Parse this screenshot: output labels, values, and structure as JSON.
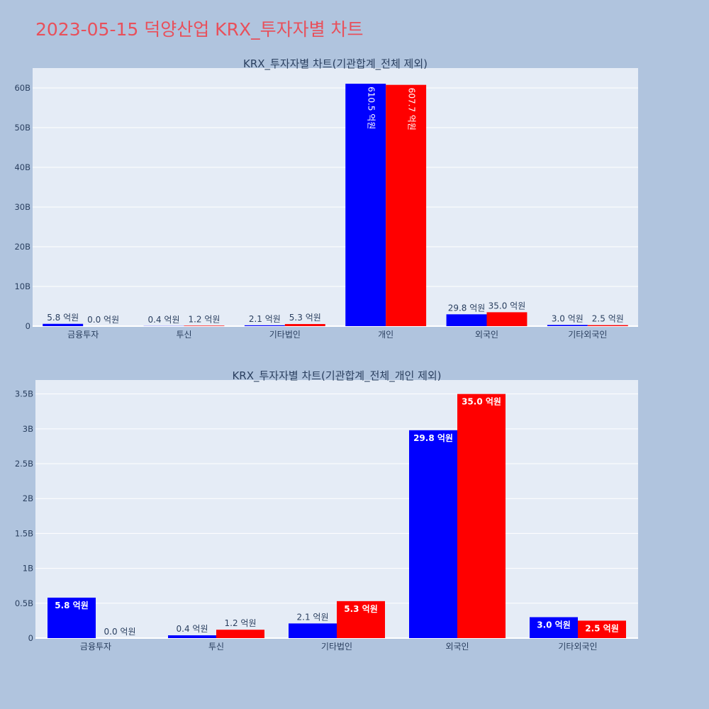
{
  "title": "2023-05-15 덕양산업 KRX_투자자별 차트",
  "colors": {
    "buy": "#0000ff",
    "sell": "#ff0000",
    "plot_bg": "#e5ecf6",
    "page_bg": "#b0c4de",
    "title": "#e8505b"
  },
  "chart_data": [
    {
      "type": "bar",
      "title": "KRX_투자자별 차트(기관합계_전체 제외)",
      "categories": [
        "금융투자",
        "투신",
        "기타법인",
        "개인",
        "외국인",
        "기타외국인"
      ],
      "series": [
        {
          "values": [
            0.58,
            0.04,
            0.21,
            61.05,
            2.98,
            0.3
          ],
          "labels": [
            "5.8 억원",
            "0.4 억원",
            "2.1 억원",
            "610.5 억원",
            "29.8 억원",
            "3.0 억원"
          ]
        },
        {
          "values": [
            0.0,
            0.12,
            0.53,
            60.77,
            3.5,
            0.25
          ],
          "labels": [
            "0.0 억원",
            "1.2 억원",
            "5.3 억원",
            "607.7 억원",
            "35.0 억원",
            "2.5 억원"
          ]
        }
      ],
      "yticks": [
        0,
        10,
        20,
        30,
        40,
        50,
        60
      ],
      "ytick_labels": [
        "0",
        "10B",
        "20B",
        "30B",
        "40B",
        "50B",
        "60B"
      ],
      "ylim": [
        0,
        65
      ],
      "unit_note": "values in billions",
      "grid": true
    },
    {
      "type": "bar",
      "title": "KRX_투자자별 차트(기관합계_전체_개인 제외)",
      "categories": [
        "금융투자",
        "투신",
        "기타법인",
        "외국인",
        "기타외국인"
      ],
      "series": [
        {
          "values": [
            0.58,
            0.04,
            0.21,
            2.98,
            0.3
          ],
          "labels": [
            "5.8 억원",
            "0.4 억원",
            "2.1 억원",
            "29.8 억원",
            "3.0 억원"
          ]
        },
        {
          "values": [
            0.0,
            0.12,
            0.53,
            3.5,
            0.25
          ],
          "labels": [
            "0.0 억원",
            "1.2 억원",
            "5.3 억원",
            "35.0 억원",
            "2.5 억원"
          ]
        }
      ],
      "yticks": [
        0,
        0.5,
        1,
        1.5,
        2,
        2.5,
        3,
        3.5
      ],
      "ytick_labels": [
        "0",
        "0.5B",
        "1B",
        "1.5B",
        "2B",
        "2.5B",
        "3B",
        "3.5B"
      ],
      "ylim": [
        0,
        3.7
      ],
      "grid": true
    }
  ]
}
